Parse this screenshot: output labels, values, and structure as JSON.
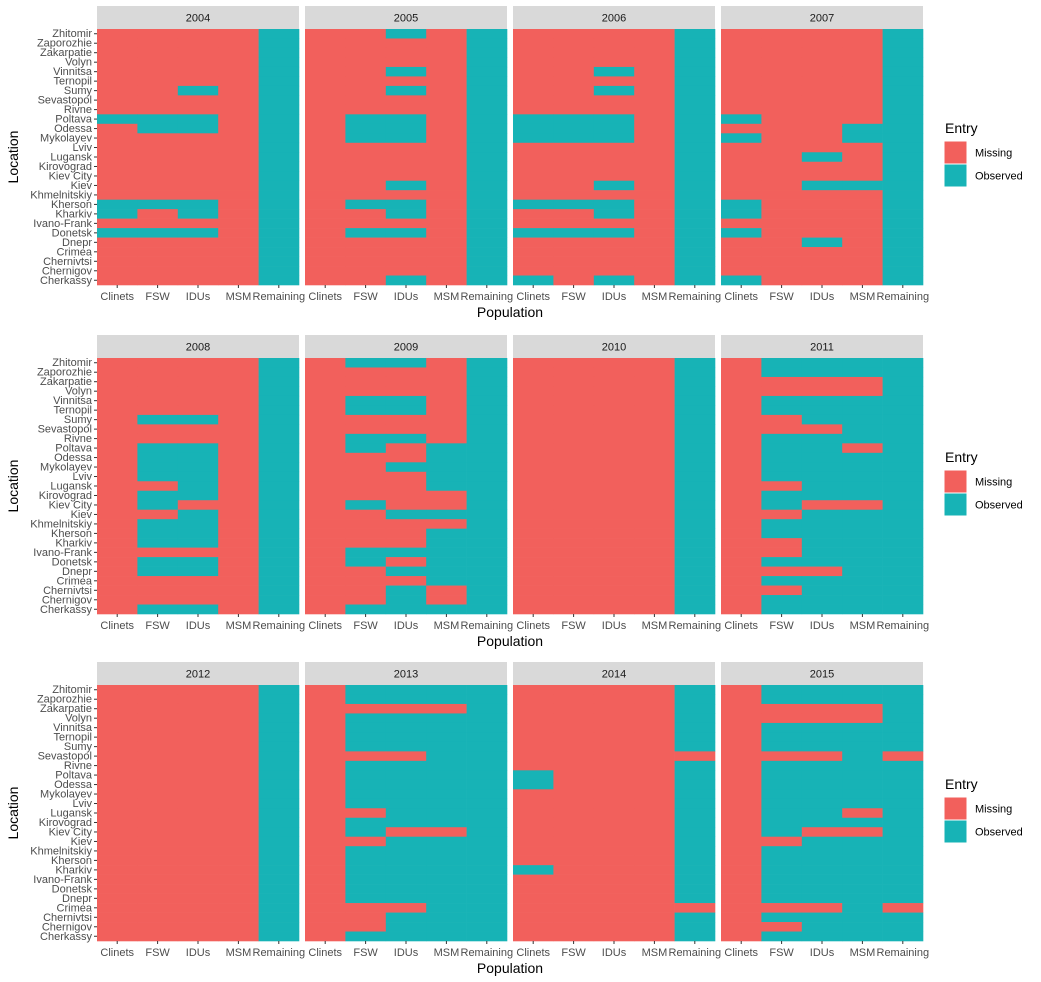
{
  "chart_data": {
    "type": "heatmap",
    "xlabel": "Population",
    "ylabel": "Location",
    "legend": {
      "title": "Entry",
      "entries": [
        {
          "label": "Missing",
          "color": "#F2605C"
        },
        {
          "label": "Observed",
          "color": "#17B3B6"
        }
      ],
      "position": "right"
    },
    "populations": [
      "Clinets",
      "FSW",
      "IDUs",
      "MSM",
      "Remaining"
    ],
    "locations": [
      "Zhitomir",
      "Zaporozhie",
      "Zakarpatie",
      "Volyn",
      "Vinnitsa",
      "Ternopil",
      "Sumy",
      "Sevastopol",
      "Rivne",
      "Poltava",
      "Odessa",
      "Mykolayev",
      "Lviv",
      "Lugansk",
      "Kirovograd",
      "Kiev City",
      "Kiev",
      "Khmelnitskiy",
      "Kherson",
      "Kharkiv",
      "Ivano-Frank",
      "Donetsk",
      "Dnepr",
      "Crimea",
      "Chernivtsi",
      "Chernigov",
      "Cherkassy"
    ],
    "encoding": "Each year has one string per location (same order as locations); each character is one population (same order as populations): M = Missing, O = Observed.",
    "panels": [
      {
        "year": "2004",
        "rows": [
          "MMMMO",
          "MMMMO",
          "MMMMO",
          "MMMMO",
          "MMMMO",
          "MMMMO",
          "MMOMO",
          "MMMMO",
          "MMMMO",
          "OOOMO",
          "MOOMO",
          "MMMMO",
          "MMMMO",
          "MMMMO",
          "MMMMO",
          "MMMMO",
          "MMMMO",
          "MMMMO",
          "OOOMO",
          "OMOMO",
          "MMMMO",
          "OOOMO",
          "MMMMO",
          "MMMMO",
          "MMMMO",
          "MMMMO",
          "MMMMO"
        ]
      },
      {
        "year": "2005",
        "rows": [
          "MMOMO",
          "MMMMO",
          "MMMMO",
          "MMMMO",
          "MMOMO",
          "MMMMO",
          "MMOMO",
          "MMMMO",
          "MMMMO",
          "MOOMO",
          "MOOMO",
          "MOOMO",
          "MMMMO",
          "MMMMO",
          "MMMMO",
          "MMMMO",
          "MMOMO",
          "MMMMO",
          "MOOMO",
          "MMOMO",
          "MMMMO",
          "MOOMO",
          "MMMMO",
          "MMMMO",
          "MMMMO",
          "MMMMO",
          "MMOMO"
        ]
      },
      {
        "year": "2006",
        "rows": [
          "MMMMO",
          "MMMMO",
          "MMMMO",
          "MMMMO",
          "MMOMO",
          "MMMMO",
          "MMOMO",
          "MMMMO",
          "MMMMO",
          "OOOMO",
          "OOOMO",
          "OOOMO",
          "MMMMO",
          "MMMMO",
          "MMMMO",
          "MMMMO",
          "MMOMO",
          "MMMMO",
          "OOOMO",
          "MMOMO",
          "MMMMO",
          "OOOMO",
          "MMMMO",
          "MMMMO",
          "MMMMO",
          "MMMMO",
          "OMOMO"
        ]
      },
      {
        "year": "2007",
        "rows": [
          "MMMMO",
          "MMMMO",
          "MMMMO",
          "MMMMO",
          "MMMMO",
          "MMMMO",
          "MMMMO",
          "MMMMO",
          "MMMMO",
          "OMMMO",
          "MMMOO",
          "OMMOO",
          "MMMMO",
          "MMOMO",
          "MMMMO",
          "MMMMO",
          "MMOOO",
          "MMMMO",
          "OMMMO",
          "OMMMO",
          "MMMMO",
          "OMMMO",
          "MMOMO",
          "MMMMO",
          "MMMMO",
          "MMMMO",
          "OMMMO"
        ]
      },
      {
        "year": "2008",
        "rows": [
          "MMMMO",
          "MMMMO",
          "MMMMO",
          "MMMMO",
          "MMMMO",
          "MMMMO",
          "MOOMO",
          "MMMMO",
          "MMMMO",
          "MOOMO",
          "MOOMO",
          "MOOMO",
          "MOOMO",
          "MMOMO",
          "MOOMO",
          "MOMMO",
          "MMOMO",
          "MOOMO",
          "MOOMO",
          "MOOMO",
          "MMMMO",
          "MOOMO",
          "MOOMO",
          "MMMMO",
          "MMMMO",
          "MMMMO",
          "MOOMO"
        ]
      },
      {
        "year": "2009",
        "rows": [
          "MOOMO",
          "MMMMO",
          "MMMMO",
          "MMMMO",
          "MOOMO",
          "MOOMO",
          "MMMMO",
          "MMMMO",
          "MOOMO",
          "MOMOO",
          "MMMOO",
          "MMOOO",
          "MMMOO",
          "MMMOO",
          "MMMMO",
          "MOMMO",
          "MMOOO",
          "MMMMO",
          "MMMOO",
          "MMMOO",
          "MOOOO",
          "MOMOO",
          "MMOOO",
          "MMMOO",
          "MMOMO",
          "MMOMO",
          "MOOOO"
        ]
      },
      {
        "year": "2010",
        "rows": [
          "MMMMO",
          "MMMMO",
          "MMMMO",
          "MMMMO",
          "MMMMO",
          "MMMMO",
          "MMMMO",
          "MMMMO",
          "MMMMO",
          "MMMMO",
          "MMMMO",
          "MMMMO",
          "MMMMO",
          "MMMMO",
          "MMMMO",
          "MMMMO",
          "MMMMO",
          "MMMMO",
          "MMMMO",
          "MMMMO",
          "MMMMO",
          "MMMMO",
          "MMMMO",
          "MMMMO",
          "MMMMO",
          "MMMMO",
          "MMMMO"
        ]
      },
      {
        "year": "2011",
        "rows": [
          "MOOOO",
          "MOOOO",
          "MMMMO",
          "MMMMO",
          "MOOOO",
          "MOOOO",
          "MMOOO",
          "MMMOO",
          "MOOOO",
          "MOOMO",
          "MOOOO",
          "MOOOO",
          "MOOOO",
          "MMOOO",
          "MOOOO",
          "MOMMO",
          "MMOOO",
          "MOOOO",
          "MOOOO",
          "MMOOO",
          "MMOOO",
          "MOOOO",
          "MMMOO",
          "MOOOO",
          "MMOOO",
          "MOOOO",
          "MOOOO"
        ]
      },
      {
        "year": "2012",
        "rows": [
          "MMMMO",
          "MMMMO",
          "MMMMO",
          "MMMMO",
          "MMMMO",
          "MMMMO",
          "MMMMO",
          "MMMMO",
          "MMMMO",
          "MMMMO",
          "MMMMO",
          "MMMMO",
          "MMMMO",
          "MMMMO",
          "MMMMO",
          "MMMMO",
          "MMMMO",
          "MMMMO",
          "MMMMO",
          "MMMMO",
          "MMMMO",
          "MMMMO",
          "MMMMO",
          "MMMMO",
          "MMMMO",
          "MMMMO",
          "MMMMO"
        ]
      },
      {
        "year": "2013",
        "rows": [
          "MOOOO",
          "MOOOO",
          "MMMMO",
          "MOOOO",
          "MOOOO",
          "MOOOO",
          "MOOOO",
          "MMMOO",
          "MOOOO",
          "MOOOO",
          "MOOOO",
          "MOOOO",
          "MOOOO",
          "MMOOO",
          "MOOOO",
          "MOMMO",
          "MMOOO",
          "MOOOO",
          "MOOOO",
          "MOOOO",
          "MOOOO",
          "MOOOO",
          "MOOOO",
          "MMMOO",
          "MMOOO",
          "MMOOO",
          "MOOOO"
        ]
      },
      {
        "year": "2014",
        "rows": [
          "MMMMO",
          "MMMMO",
          "MMMMO",
          "MMMMO",
          "MMMMO",
          "MMMMO",
          "MMMMO",
          "MMMMM",
          "MMMMO",
          "OMMMO",
          "OMMMO",
          "MMMMO",
          "MMMMO",
          "MMMMO",
          "MMMMO",
          "MMMMO",
          "MMMMO",
          "MMMMO",
          "MMMMO",
          "OMMMO",
          "MMMMO",
          "MMMMO",
          "MMMMO",
          "MMMMM",
          "MMMMO",
          "MMMMO",
          "MMMMO"
        ]
      },
      {
        "year": "2015",
        "rows": [
          "MOOOO",
          "MOOOO",
          "MMMMO",
          "MMMMO",
          "MOOOO",
          "MOOOO",
          "MOOOO",
          "MMMOM",
          "MOOOO",
          "MOOOO",
          "MOOOO",
          "MOOOO",
          "MOOOO",
          "MOOMO",
          "MOOOO",
          "MOMMO",
          "MMOOO",
          "MOOOO",
          "MOOOO",
          "MOOOO",
          "MOOOO",
          "MOOOO",
          "MOOOO",
          "MMMOM",
          "MOOOO",
          "MMOOO",
          "MOOOO"
        ]
      }
    ]
  }
}
